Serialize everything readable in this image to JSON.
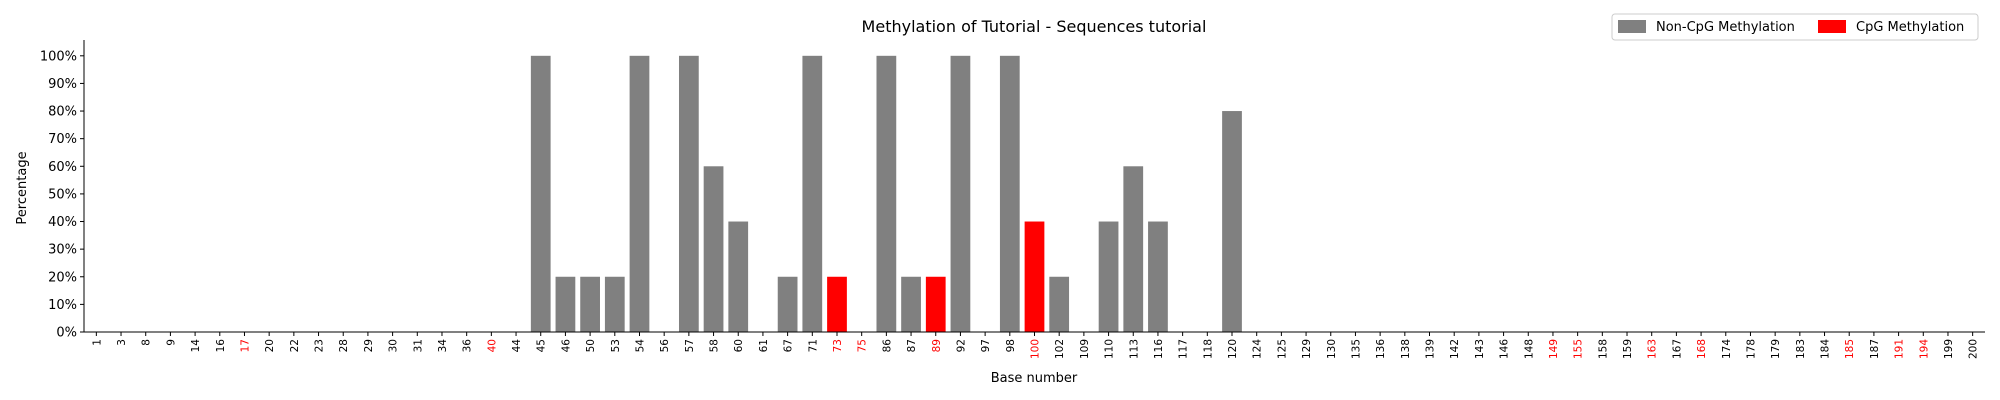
{
  "chart_data": {
    "type": "bar",
    "title": "Methylation of Tutorial - Sequences tutorial",
    "xlabel": "Base number",
    "ylabel": "Percentage",
    "ylim": [
      0,
      105
    ],
    "yticks": [
      "0%",
      "10%",
      "20%",
      "30%",
      "40%",
      "50%",
      "60%",
      "70%",
      "80%",
      "90%",
      "100%"
    ],
    "legend_position": "top-right",
    "colors": {
      "non_cpg": "#808080",
      "cpg": "#ff0000",
      "axis": "#000000",
      "cpg_label": "#ff0000"
    },
    "series": [
      {
        "name": "Non-CpG Methylation",
        "key": "non_cpg"
      },
      {
        "name": "CpG Methylation",
        "key": "cpg"
      }
    ],
    "categories": [
      "1",
      "3",
      "8",
      "9",
      "14",
      "16",
      "17",
      "20",
      "22",
      "23",
      "28",
      "29",
      "30",
      "31",
      "34",
      "36",
      "40",
      "44",
      "45",
      "46",
      "50",
      "53",
      "54",
      "56",
      "57",
      "58",
      "60",
      "61",
      "67",
      "71",
      "73",
      "75",
      "86",
      "87",
      "89",
      "92",
      "97",
      "98",
      "100",
      "102",
      "109",
      "110",
      "113",
      "116",
      "117",
      "118",
      "120",
      "124",
      "125",
      "129",
      "130",
      "135",
      "136",
      "138",
      "139",
      "142",
      "143",
      "146",
      "148",
      "149",
      "155",
      "158",
      "159",
      "163",
      "167",
      "168",
      "174",
      "178",
      "179",
      "183",
      "184",
      "185",
      "187",
      "191",
      "194",
      "199",
      "200"
    ],
    "cpg_sites": [
      "17",
      "40",
      "73",
      "75",
      "89",
      "100",
      "149",
      "155",
      "163",
      "168",
      "185",
      "191",
      "194"
    ],
    "values": [
      0,
      0,
      0,
      0,
      0,
      0,
      0,
      0,
      0,
      0,
      0,
      0,
      0,
      0,
      0,
      0,
      0,
      0,
      100,
      20,
      20,
      20,
      100,
      0,
      100,
      60,
      40,
      0,
      20,
      100,
      20,
      0,
      100,
      20,
      20,
      100,
      0,
      100,
      40,
      20,
      0,
      40,
      60,
      40,
      0,
      0,
      80,
      0,
      0,
      0,
      0,
      0,
      0,
      0,
      0,
      0,
      0,
      0,
      0,
      0,
      0,
      0,
      0,
      0,
      0,
      0,
      0,
      0,
      0,
      0,
      0,
      0,
      0,
      0,
      0,
      0,
      0
    ]
  }
}
